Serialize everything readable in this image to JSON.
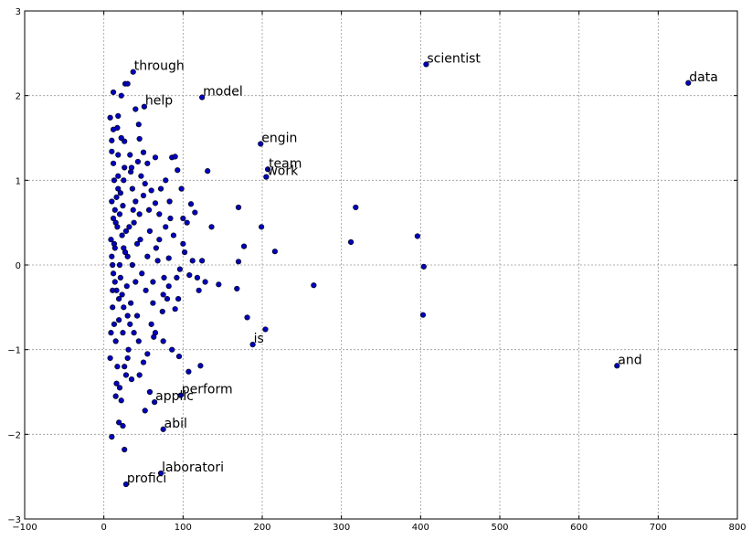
{
  "chart_data": {
    "type": "scatter",
    "title": "",
    "xlabel": "",
    "ylabel": "",
    "xlim": [
      -100,
      800
    ],
    "ylim": [
      -3,
      3
    ],
    "xticks": [
      -100,
      0,
      100,
      200,
      300,
      400,
      500,
      600,
      700,
      800
    ],
    "yticks": [
      -3,
      -2,
      -1,
      0,
      1,
      2,
      3
    ],
    "xtick_labels": [
      "−100",
      "0",
      "100",
      "200",
      "300",
      "400",
      "500",
      "600",
      "700",
      "800"
    ],
    "ytick_labels": [
      "−3",
      "−2",
      "−1",
      "0",
      "1",
      "2",
      "3"
    ],
    "grid": true,
    "marker_color": "#0000bb",
    "annotations": [
      {
        "label": "data",
        "x": 738,
        "y": 2.15
      },
      {
        "label": "scientist",
        "x": 407,
        "y": 2.37
      },
      {
        "label": "through",
        "x": 37,
        "y": 2.28
      },
      {
        "label": "model",
        "x": 124,
        "y": 1.98
      },
      {
        "label": "help",
        "x": 51,
        "y": 1.87
      },
      {
        "label": "engin",
        "x": 198,
        "y": 1.43
      },
      {
        "label": "team",
        "x": 207,
        "y": 1.13
      },
      {
        "label": "work",
        "x": 205,
        "y": 1.04
      },
      {
        "label": "is",
        "x": 188,
        "y": -0.94
      },
      {
        "label": "and",
        "x": 648,
        "y": -1.19
      },
      {
        "label": "perform",
        "x": 97,
        "y": -1.54
      },
      {
        "label": "applic",
        "x": 64,
        "y": -1.62
      },
      {
        "label": "abil",
        "x": 75,
        "y": -1.94
      },
      {
        "label": "laboratori",
        "x": 72,
        "y": -2.46
      },
      {
        "label": "profici",
        "x": 28,
        "y": -2.59
      }
    ],
    "points": [
      [
        738,
        2.15
      ],
      [
        407,
        2.37
      ],
      [
        37,
        2.28
      ],
      [
        124,
        1.98
      ],
      [
        51,
        1.87
      ],
      [
        198,
        1.43
      ],
      [
        207,
        1.13
      ],
      [
        205,
        1.04
      ],
      [
        188,
        -0.94
      ],
      [
        648,
        -1.19
      ],
      [
        97,
        -1.54
      ],
      [
        64,
        -1.62
      ],
      [
        75,
        -1.94
      ],
      [
        72,
        -2.46
      ],
      [
        28,
        -2.59
      ],
      [
        12,
        2.04
      ],
      [
        22,
        2.0
      ],
      [
        27,
        2.14
      ],
      [
        30,
        2.14
      ],
      [
        8,
        1.74
      ],
      [
        18,
        1.76
      ],
      [
        40,
        1.84
      ],
      [
        44,
        1.66
      ],
      [
        17,
        1.62
      ],
      [
        10,
        1.47
      ],
      [
        26,
        1.46
      ],
      [
        45,
        1.49
      ],
      [
        50,
        1.33
      ],
      [
        65,
        1.27
      ],
      [
        86,
        1.27
      ],
      [
        90,
        1.28
      ],
      [
        10,
        1.34
      ],
      [
        12,
        1.2
      ],
      [
        35,
        1.15
      ],
      [
        43,
        1.22
      ],
      [
        55,
        1.2
      ],
      [
        93,
        1.12
      ],
      [
        131,
        1.11
      ],
      [
        18,
        1.05
      ],
      [
        25,
        1.0
      ],
      [
        52,
        0.96
      ],
      [
        78,
        1.0
      ],
      [
        60,
        0.88
      ],
      [
        50,
        0.82
      ],
      [
        65,
        0.73
      ],
      [
        83,
        0.75
      ],
      [
        110,
        0.72
      ],
      [
        170,
        0.68
      ],
      [
        318,
        0.68
      ],
      [
        115,
        0.62
      ],
      [
        100,
        0.55
      ],
      [
        105,
        0.5
      ],
      [
        136,
        0.45
      ],
      [
        199,
        0.45
      ],
      [
        396,
        0.34
      ],
      [
        312,
        0.27
      ],
      [
        70,
        0.3
      ],
      [
        100,
        0.25
      ],
      [
        177,
        0.22
      ],
      [
        216,
        0.16
      ],
      [
        82,
        0.08
      ],
      [
        112,
        0.05
      ],
      [
        124,
        0.05
      ],
      [
        170,
        0.04
      ],
      [
        404,
        -0.02
      ],
      [
        96,
        -0.05
      ],
      [
        108,
        -0.12
      ],
      [
        118,
        -0.15
      ],
      [
        128,
        -0.2
      ],
      [
        145,
        -0.23
      ],
      [
        168,
        -0.28
      ],
      [
        265,
        -0.24
      ],
      [
        120,
        -0.3
      ],
      [
        75,
        -0.35
      ],
      [
        80,
        -0.4
      ],
      [
        62,
        -0.45
      ],
      [
        90,
        -0.52
      ],
      [
        181,
        -0.62
      ],
      [
        403,
        -0.59
      ],
      [
        204,
        -0.76
      ],
      [
        60,
        -0.7
      ],
      [
        65,
        -0.8
      ],
      [
        75,
        -0.9
      ],
      [
        86,
        -1.0
      ],
      [
        95,
        -1.08
      ],
      [
        107,
        -1.26
      ],
      [
        122,
        -1.19
      ],
      [
        55,
        -1.05
      ],
      [
        50,
        -1.15
      ],
      [
        45,
        -1.3
      ],
      [
        35,
        -1.35
      ],
      [
        58,
        -1.5
      ],
      [
        52,
        -1.72
      ],
      [
        19,
        -1.86
      ],
      [
        24,
        -1.9
      ],
      [
        10,
        -2.03
      ],
      [
        26,
        -2.18
      ],
      [
        15,
        -1.55
      ],
      [
        20,
        -1.45
      ],
      [
        38,
        -0.8
      ],
      [
        30,
        -0.6
      ],
      [
        40,
        -0.2
      ],
      [
        30,
        0.1
      ],
      [
        45,
        0.6
      ],
      [
        36,
        0.9
      ],
      [
        28,
        0.4
      ],
      [
        42,
        0.25
      ],
      [
        24,
        0.7
      ],
      [
        33,
        1.3
      ],
      [
        22,
        1.5
      ],
      [
        31,
        -1.0
      ],
      [
        14,
        0.2
      ],
      [
        16,
        -0.3
      ],
      [
        15,
        0.5
      ],
      [
        13,
        -0.7
      ],
      [
        18,
        0.9
      ],
      [
        17,
        -1.2
      ],
      [
        21,
        -0.15
      ],
      [
        23,
        0.35
      ],
      [
        11,
        0.0
      ],
      [
        12,
        -0.1
      ],
      [
        10,
        0.1
      ],
      [
        14,
        -0.2
      ],
      [
        9,
        0.3
      ],
      [
        19,
        -0.4
      ],
      [
        20,
        0.6
      ],
      [
        11,
        -0.5
      ],
      [
        16,
        0.8
      ],
      [
        13,
        1.0
      ],
      [
        15,
        -0.9
      ],
      [
        8,
        -1.1
      ],
      [
        25,
        -0.5
      ],
      [
        27,
        0.15
      ],
      [
        29,
        -0.25
      ],
      [
        32,
        0.45
      ],
      [
        34,
        -0.45
      ],
      [
        36,
        0.0
      ],
      [
        38,
        0.5
      ],
      [
        40,
        0.75
      ],
      [
        42,
        -0.6
      ],
      [
        44,
        -0.9
      ],
      [
        46,
        0.3
      ],
      [
        48,
        -0.1
      ],
      [
        55,
        0.1
      ],
      [
        58,
        0.4
      ],
      [
        62,
        -0.2
      ],
      [
        66,
        0.2
      ],
      [
        70,
        0.6
      ],
      [
        74,
        -0.55
      ],
      [
        78,
        0.45
      ],
      [
        82,
        -0.25
      ],
      [
        88,
        0.35
      ],
      [
        92,
        -0.15
      ],
      [
        102,
        0.15
      ],
      [
        26,
        -1.2
      ],
      [
        30,
        -1.1
      ],
      [
        34,
        1.1
      ],
      [
        18,
        1.3
      ],
      [
        12,
        1.6
      ],
      [
        16,
        -1.4
      ],
      [
        22,
        -1.6
      ],
      [
        28,
        -1.3
      ],
      [
        20,
        0.0
      ],
      [
        25,
        0.2
      ],
      [
        24,
        -0.8
      ],
      [
        17,
        0.45
      ],
      [
        14,
        0.65
      ],
      [
        11,
        -0.3
      ],
      [
        13,
        0.25
      ],
      [
        19,
        -0.65
      ],
      [
        21,
        0.85
      ],
      [
        23,
        -0.35
      ],
      [
        9,
        -0.8
      ],
      [
        10,
        0.75
      ],
      [
        12,
        0.55
      ],
      [
        26,
        1.15
      ],
      [
        33,
        -0.7
      ],
      [
        37,
        0.65
      ],
      [
        47,
        1.05
      ],
      [
        53,
        -0.3
      ],
      [
        57,
        0.65
      ],
      [
        63,
        -0.85
      ],
      [
        68,
        0.05
      ],
      [
        72,
        0.9
      ],
      [
        76,
        -0.15
      ],
      [
        84,
        0.55
      ],
      [
        94,
        -0.4
      ],
      [
        98,
        0.9
      ]
    ]
  }
}
